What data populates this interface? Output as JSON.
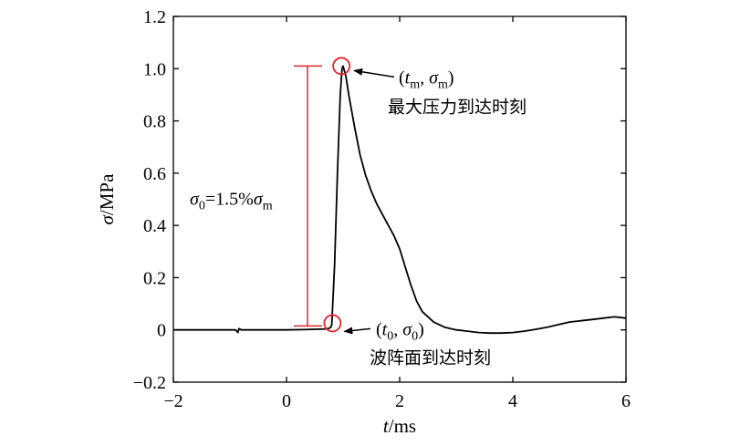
{
  "chart_data": {
    "type": "line",
    "xlabel": "t/ms",
    "ylabel": "σ/MPa",
    "xlim": [
      -2,
      6
    ],
    "ylim": [
      -0.2,
      1.2
    ],
    "x_ticks": [
      "−2",
      "0",
      "2",
      "4",
      "6"
    ],
    "y_ticks": [
      "−0.2",
      "0",
      "0.2",
      "0.4",
      "0.6",
      "0.8",
      "1.0",
      "1.2"
    ],
    "grid": false,
    "series": [
      {
        "color": "#000000",
        "x": [
          -2.0,
          -1.0,
          -0.9,
          -0.86,
          -0.84,
          -0.8,
          -0.5,
          0.0,
          0.3,
          0.6,
          0.7,
          0.75,
          0.78,
          0.8,
          0.85,
          0.9,
          0.95,
          0.98,
          1.0,
          1.05,
          1.1,
          1.2,
          1.3,
          1.4,
          1.5,
          1.6,
          1.7,
          1.8,
          1.9,
          2.0,
          2.1,
          2.2,
          2.3,
          2.4,
          2.6,
          2.8,
          3.0,
          3.2,
          3.4,
          3.6,
          3.8,
          4.0,
          4.2,
          4.4,
          4.6,
          4.8,
          5.0,
          5.2,
          5.4,
          5.6,
          5.8,
          6.0
        ],
        "y": [
          0.0,
          0.0,
          0.0,
          -0.01,
          0.005,
          0.0,
          0.0,
          0.0,
          0.001,
          0.003,
          0.004,
          0.006,
          0.01,
          0.02,
          0.25,
          0.6,
          0.9,
          1.0,
          1.01,
          0.97,
          0.9,
          0.78,
          0.67,
          0.59,
          0.53,
          0.48,
          0.44,
          0.4,
          0.36,
          0.31,
          0.24,
          0.17,
          0.11,
          0.07,
          0.03,
          0.01,
          0.0,
          -0.005,
          -0.01,
          -0.012,
          -0.012,
          -0.01,
          -0.005,
          0.002,
          0.01,
          0.02,
          0.03,
          0.035,
          0.04,
          0.045,
          0.05,
          0.045
        ]
      }
    ],
    "markers": {
      "peak": {
        "x": 0.97,
        "y": 1.01
      },
      "onset": {
        "x": 0.78,
        "y": 0.015
      }
    },
    "annotations": {
      "peak_label": "(tm, σm)",
      "peak_desc": "最大压力到达时刻",
      "onset_label": "(t0, σ0)",
      "onset_desc": "波阵面到达时刻",
      "sigma0_formula": "σ0=1.5%σm"
    },
    "colors": {
      "curve": "#000000",
      "marker": "#e1262d",
      "bracket": "#e1262d"
    }
  }
}
